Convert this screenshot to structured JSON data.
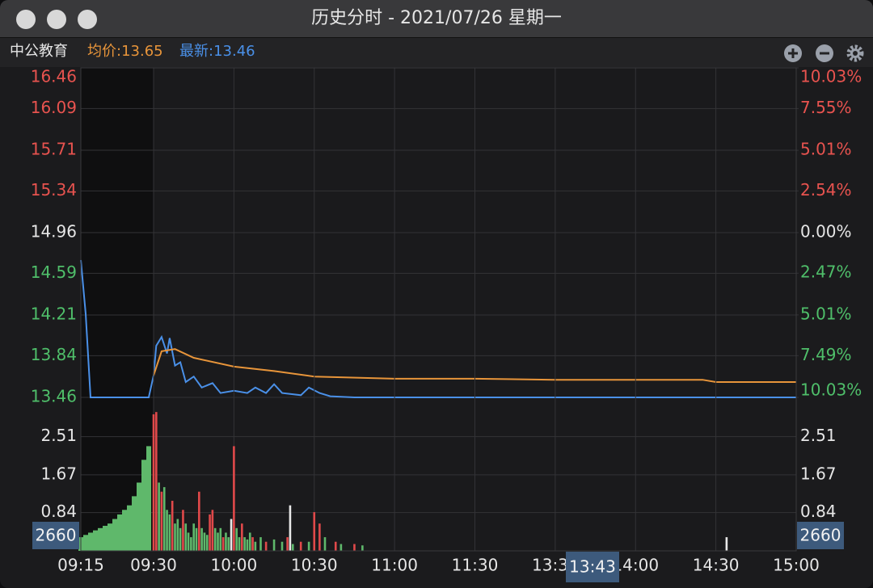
{
  "window": {
    "title": "历史分时 - 2021/07/26 星期一"
  },
  "header": {
    "name": "中公教育",
    "avg_label": "均价:13.65",
    "last_label": "最新:13.46"
  },
  "cursor": {
    "time": "13:43",
    "volume": 2660
  },
  "chart_data": [
    {
      "type": "line",
      "ylim": [
        13.46,
        16.46
      ],
      "yticks": [
        16.46,
        16.09,
        15.71,
        15.34,
        14.96,
        14.59,
        14.21,
        13.84,
        13.46
      ],
      "y2lim": [
        -10.03,
        10.03
      ],
      "y2ticks": [
        {
          "value": 10.03,
          "label": "10.03%"
        },
        {
          "value": 7.55,
          "label": "7.55%"
        },
        {
          "value": 5.01,
          "label": "5.01%"
        },
        {
          "value": 2.54,
          "label": "2.54%"
        },
        {
          "value": 0,
          "label": "0.00%"
        },
        {
          "value": -2.47,
          "label": "2.47%"
        },
        {
          "value": -5.01,
          "label": "5.01%"
        },
        {
          "value": -7.49,
          "label": "7.49%"
        },
        {
          "value": -10.03,
          "label": "10.03%"
        }
      ],
      "grid": true,
      "series": [
        {
          "color": "#4a90e8",
          "x": [
            "09:15",
            "09:16",
            "09:17",
            "09:29",
            "09:30",
            "09:31",
            "09:33",
            "09:35",
            "09:36",
            "09:38",
            "09:40",
            "09:42",
            "09:45",
            "09:48",
            "09:52",
            "09:55",
            "10:00",
            "10:05",
            "10:08",
            "10:12",
            "10:15",
            "10:18",
            "10:25",
            "10:28",
            "10:32",
            "10:36",
            "10:45",
            "11:30",
            "15:00"
          ],
          "values": [
            14.71,
            14.22,
            13.46,
            13.46,
            13.66,
            13.93,
            14.01,
            13.86,
            14.0,
            13.75,
            13.78,
            13.6,
            13.65,
            13.55,
            13.59,
            13.5,
            13.52,
            13.5,
            13.55,
            13.5,
            13.58,
            13.5,
            13.48,
            13.55,
            13.5,
            13.47,
            13.46,
            13.46,
            13.46
          ]
        },
        {
          "color": "#e8953a",
          "x": [
            "09:30",
            "09:33",
            "09:38",
            "09:45",
            "10:00",
            "10:15",
            "10:30",
            "11:00",
            "11:30",
            "13:30",
            "14:25",
            "14:30",
            "15:00"
          ],
          "values": [
            13.66,
            13.88,
            13.9,
            13.82,
            13.74,
            13.7,
            13.65,
            13.63,
            13.63,
            13.62,
            13.62,
            13.6,
            13.6
          ]
        }
      ]
    },
    {
      "type": "bar",
      "ylim": [
        0,
        3.23
      ],
      "yticks": [
        2.51,
        1.67,
        0.84
      ],
      "xticks": [
        "09:15",
        "09:30",
        "10:00",
        "10:30",
        "11:00",
        "11:30",
        "13:30",
        "14:00",
        "14:30",
        "15:00"
      ],
      "grid": true,
      "series": [
        {
          "color": "#5fb86b",
          "x": [
            "09:15",
            "09:16",
            "09:17",
            "09:18",
            "09:19",
            "09:20",
            "09:21",
            "09:22",
            "09:23",
            "09:24",
            "09:25",
            "09:26",
            "09:27",
            "09:28",
            "09:29"
          ],
          "values": [
            0.3,
            0.35,
            0.4,
            0.45,
            0.5,
            0.55,
            0.6,
            0.7,
            0.8,
            0.9,
            1.0,
            1.2,
            1.5,
            2.0,
            2.3
          ]
        },
        {
          "color": "#e0494a",
          "x": [
            "09:30",
            "09:31",
            "09:33",
            "09:37",
            "09:41",
            "09:47",
            "09:51",
            "09:52",
            "09:56",
            "10:00",
            "10:03",
            "10:07",
            "10:12",
            "10:20",
            "10:25",
            "10:30",
            "10:32",
            "10:38",
            "10:45"
          ],
          "values": [
            3.0,
            3.05,
            1.3,
            1.1,
            0.9,
            1.3,
            0.8,
            0.9,
            0.3,
            2.3,
            0.6,
            0.3,
            0.2,
            0.3,
            0.2,
            0.85,
            0.6,
            0.2,
            0.15
          ]
        },
        {
          "color": "#5fb86b",
          "x": [
            "09:32",
            "09:34",
            "09:35",
            "09:36",
            "09:38",
            "09:39",
            "09:40",
            "09:42",
            "09:43",
            "09:44",
            "09:45",
            "09:46",
            "09:48",
            "09:49",
            "09:50",
            "09:53",
            "09:54",
            "09:55",
            "09:57",
            "09:58",
            "10:01",
            "10:02",
            "10:04",
            "10:05",
            "10:06",
            "10:08",
            "10:10",
            "10:15",
            "10:18",
            "10:22",
            "10:28",
            "10:34",
            "10:40",
            "10:48"
          ],
          "values": [
            1.5,
            1.4,
            0.9,
            0.8,
            0.6,
            0.7,
            0.5,
            0.6,
            0.4,
            0.3,
            0.6,
            0.5,
            0.5,
            0.4,
            0.35,
            0.5,
            0.4,
            0.5,
            0.4,
            0.3,
            0.5,
            0.3,
            0.3,
            0.25,
            0.4,
            0.2,
            0.3,
            0.25,
            0.2,
            0.15,
            0.2,
            0.3,
            0.15,
            0.12
          ]
        },
        {
          "color": "#e8e8e8",
          "x": [
            "09:59",
            "10:21",
            "14:34"
          ],
          "values": [
            0.7,
            1.0,
            0.3
          ]
        }
      ]
    }
  ]
}
